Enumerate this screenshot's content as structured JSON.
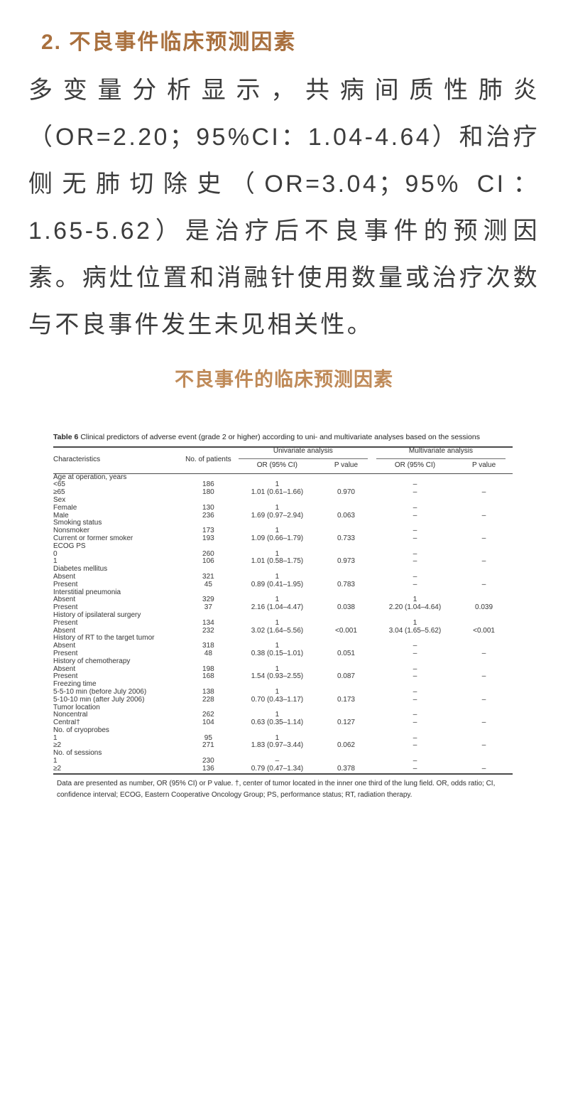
{
  "page": {
    "heading": "2. 不良事件临床预测因素",
    "paragraph": "多变量分析显示，共病间质性肺炎（OR=2.20；95%CI：1.04-4.64）和治疗侧无肺切除史（OR=3.04；95% CI：1.65-5.62）是治疗后不良事件的预测因素。病灶位置和消融针使用数量或治疗次数与不良事件发生未见相关性。",
    "subtitle": "不良事件的临床预测因素"
  },
  "colors": {
    "heading_accent": "#a9703e",
    "subtitle_accent": "#bf8a58"
  },
  "table": {
    "title_bold": "Table 6",
    "title_text": " Clinical predictors of adverse event (grade 2 or higher) according to uni- and multivariate analyses based on the sessions",
    "headers": {
      "characteristics": "Characteristics",
      "patients": "No. of patients",
      "univariate": "Univariate analysis",
      "multivariate": "Multivariate analysis",
      "or_ci": "OR (95% CI)",
      "p_value": "P value"
    },
    "rows": [
      {
        "type": "group",
        "label": "Age at operation, years"
      },
      {
        "type": "data",
        "cells": [
          "<65",
          "186",
          "1",
          "",
          "–",
          ""
        ]
      },
      {
        "type": "data",
        "cells": [
          "≥65",
          "180",
          "1.01 (0.61–1.66)",
          "0.970",
          "–",
          "–"
        ]
      },
      {
        "type": "group",
        "label": "Sex"
      },
      {
        "type": "data",
        "cells": [
          "Female",
          "130",
          "1",
          "",
          "–",
          ""
        ]
      },
      {
        "type": "data",
        "cells": [
          "Male",
          "236",
          "1.69 (0.97–2.94)",
          "0.063",
          "–",
          "–"
        ]
      },
      {
        "type": "group",
        "label": "Smoking status"
      },
      {
        "type": "data",
        "cells": [
          "Nonsmoker",
          "173",
          "1",
          "",
          "–",
          ""
        ]
      },
      {
        "type": "data",
        "cells": [
          "Current or former smoker",
          "193",
          "1.09 (0.66–1.79)",
          "0.733",
          "–",
          "–"
        ]
      },
      {
        "type": "group",
        "label": "ECOG PS"
      },
      {
        "type": "data",
        "cells": [
          "0",
          "260",
          "1",
          "",
          "–",
          ""
        ]
      },
      {
        "type": "data",
        "cells": [
          "1",
          "106",
          "1.01 (0.58–1.75)",
          "0.973",
          "–",
          "–"
        ]
      },
      {
        "type": "group",
        "label": "Diabetes mellitus"
      },
      {
        "type": "data",
        "cells": [
          "Absent",
          "321",
          "1",
          "",
          "–",
          ""
        ]
      },
      {
        "type": "data",
        "cells": [
          "Present",
          "45",
          "0.89 (0.41–1.95)",
          "0.783",
          "–",
          "–"
        ]
      },
      {
        "type": "group",
        "label": "Interstitial pneumonia"
      },
      {
        "type": "data",
        "cells": [
          "Absent",
          "329",
          "1",
          "",
          "1",
          ""
        ]
      },
      {
        "type": "data",
        "cells": [
          "Present",
          "37",
          "2.16 (1.04–4.47)",
          "0.038",
          "2.20 (1.04–4.64)",
          "0.039"
        ]
      },
      {
        "type": "group",
        "label": "History of ipsilateral surgery"
      },
      {
        "type": "data",
        "cells": [
          "Present",
          "134",
          "1",
          "",
          "1",
          ""
        ]
      },
      {
        "type": "data",
        "cells": [
          "Absent",
          "232",
          "3.02 (1.64–5.56)",
          "<0.001",
          "3.04 (1.65–5.62)",
          "<0.001"
        ]
      },
      {
        "type": "group",
        "label": "History of RT to the target tumor"
      },
      {
        "type": "data",
        "cells": [
          "Absent",
          "318",
          "1",
          "",
          "–",
          ""
        ]
      },
      {
        "type": "data",
        "cells": [
          "Present",
          "48",
          "0.38 (0.15–1.01)",
          "0.051",
          "–",
          "–"
        ]
      },
      {
        "type": "group",
        "label": "History of chemotherapy"
      },
      {
        "type": "data",
        "cells": [
          "Absent",
          "198",
          "1",
          "",
          "–",
          ""
        ]
      },
      {
        "type": "data",
        "cells": [
          "Present",
          "168",
          "1.54 (0.93–2.55)",
          "0.087",
          "–",
          "–"
        ]
      },
      {
        "type": "group",
        "label": "Freezing time"
      },
      {
        "type": "data",
        "cells": [
          "5-5-10 min (before July 2006)",
          "138",
          "1",
          "",
          "–",
          ""
        ]
      },
      {
        "type": "data",
        "cells": [
          "5-10-10 min (after July 2006)",
          "228",
          "0.70 (0.43–1.17)",
          "0.173",
          "–",
          "–"
        ]
      },
      {
        "type": "group",
        "label": "Tumor location"
      },
      {
        "type": "data",
        "cells": [
          "Noncentral",
          "262",
          "1",
          "",
          "–",
          ""
        ]
      },
      {
        "type": "data",
        "cells": [
          "Central†",
          "104",
          "0.63 (0.35–1.14)",
          "0.127",
          "–",
          "–"
        ]
      },
      {
        "type": "group",
        "label": "No. of cryoprobes"
      },
      {
        "type": "data",
        "cells": [
          "1",
          "95",
          "1",
          "",
          "–",
          ""
        ]
      },
      {
        "type": "data",
        "cells": [
          "≥2",
          "271",
          "1.83 (0.97–3.44)",
          "0.062",
          "–",
          "–"
        ]
      },
      {
        "type": "group",
        "label": "No. of sessions"
      },
      {
        "type": "data",
        "cells": [
          "1",
          "230",
          "–",
          "",
          "–",
          ""
        ]
      },
      {
        "type": "data",
        "cells": [
          "≥2",
          "136",
          "0.79 (0.47–1.34)",
          "0.378",
          "–",
          "–"
        ]
      }
    ],
    "footnote": "Data are presented as number, OR (95% CI) or P value. †, center of tumor located in the inner one third of the lung field. OR, odds ratio; CI, confidence interval; ECOG, Eastern Cooperative Oncology Group; PS, performance status; RT, radiation therapy."
  }
}
